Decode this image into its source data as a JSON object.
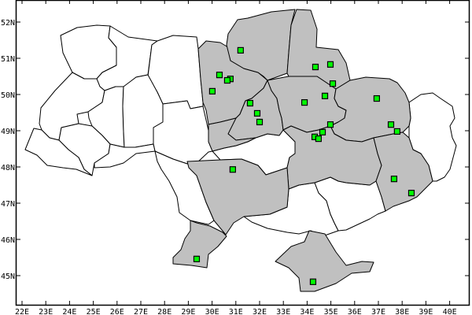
{
  "map": {
    "x_axis": {
      "min": 22,
      "max": 40,
      "step": 1,
      "suffix": "E",
      "tick_labels": [
        "22E",
        "23E",
        "24E",
        "25E",
        "26E",
        "27E",
        "28E",
        "29E",
        "30E",
        "31E",
        "32E",
        "33E",
        "34E",
        "35E",
        "36E",
        "37E",
        "38E",
        "39E",
        "40E"
      ]
    },
    "y_axis": {
      "min": 45,
      "max": 52,
      "step": 1,
      "suffix": "N",
      "tick_labels": [
        "45N",
        "46N",
        "47N",
        "48N",
        "49N",
        "50N",
        "51N",
        "52N"
      ]
    },
    "colors": {
      "shaded_region": "#c0c0c0",
      "unshaded_region": "#ffffff",
      "marker": "#00ff00",
      "marker_border": "#000000",
      "outline": "#000000"
    },
    "marker_shape": "square",
    "markers": [
      {
        "lon": 31.2,
        "lat": 51.22
      },
      {
        "lon": 30.31,
        "lat": 50.54
      },
      {
        "lon": 30.77,
        "lat": 50.43
      },
      {
        "lon": 30.64,
        "lat": 50.39
      },
      {
        "lon": 30.01,
        "lat": 50.09
      },
      {
        "lon": 31.6,
        "lat": 49.76
      },
      {
        "lon": 31.9,
        "lat": 49.48
      },
      {
        "lon": 32.0,
        "lat": 49.24
      },
      {
        "lon": 33.89,
        "lat": 49.78
      },
      {
        "lon": 34.35,
        "lat": 50.76
      },
      {
        "lon": 34.98,
        "lat": 50.83
      },
      {
        "lon": 35.08,
        "lat": 50.3
      },
      {
        "lon": 34.75,
        "lat": 49.96
      },
      {
        "lon": 36.93,
        "lat": 49.89
      },
      {
        "lon": 34.98,
        "lat": 49.17
      },
      {
        "lon": 34.65,
        "lat": 48.96
      },
      {
        "lon": 34.32,
        "lat": 48.83
      },
      {
        "lon": 34.48,
        "lat": 48.78
      },
      {
        "lon": 37.53,
        "lat": 49.17
      },
      {
        "lon": 37.79,
        "lat": 48.98
      },
      {
        "lon": 30.87,
        "lat": 47.93
      },
      {
        "lon": 37.66,
        "lat": 47.67
      },
      {
        "lon": 38.39,
        "lat": 47.28
      },
      {
        "lon": 29.35,
        "lat": 45.46
      },
      {
        "lon": 34.25,
        "lat": 44.83
      }
    ]
  }
}
